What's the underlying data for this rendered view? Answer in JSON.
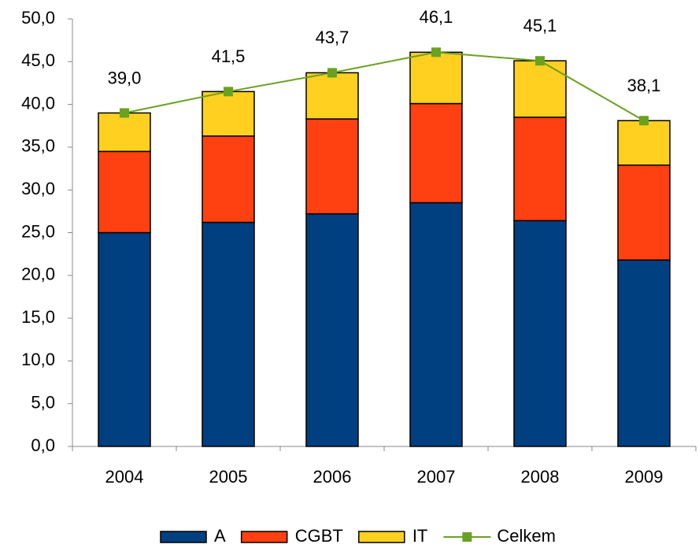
{
  "chart_data": {
    "type": "stacked-bar-line",
    "categories": [
      "2004",
      "2005",
      "2006",
      "2007",
      "2008",
      "2009"
    ],
    "series": [
      {
        "name": "A",
        "color": "#003f80",
        "values": [
          25.0,
          26.2,
          27.2,
          28.5,
          26.4,
          21.8
        ]
      },
      {
        "name": "CGBT",
        "color": "#ff4010",
        "values": [
          9.5,
          10.1,
          11.1,
          11.6,
          12.1,
          11.1
        ]
      },
      {
        "name": "IT",
        "color": "#ffd020",
        "values": [
          4.5,
          5.2,
          5.4,
          6.0,
          6.6,
          5.2
        ]
      },
      {
        "name": "Celkem",
        "type": "line",
        "color": "#6aa121",
        "values": [
          39.0,
          41.5,
          43.7,
          46.1,
          45.1,
          38.1
        ],
        "value_labels": [
          "39,0",
          "41,5",
          "43,7",
          "46,1",
          "45,1",
          "38,1"
        ]
      }
    ],
    "ylim": [
      0,
      50
    ],
    "yticks": [
      {
        "value": 0,
        "label": "0,0"
      },
      {
        "value": 5,
        "label": "5,0"
      },
      {
        "value": 10,
        "label": "10,0"
      },
      {
        "value": 15,
        "label": "15,0"
      },
      {
        "value": 20,
        "label": "20,0"
      },
      {
        "value": 25,
        "label": "25,0"
      },
      {
        "value": 30,
        "label": "30,0"
      },
      {
        "value": 35,
        "label": "35,0"
      },
      {
        "value": 40,
        "label": "40,0"
      },
      {
        "value": 45,
        "label": "45,0"
      },
      {
        "value": 50,
        "label": "50,0"
      }
    ],
    "grid": false,
    "legend": "bottom"
  }
}
